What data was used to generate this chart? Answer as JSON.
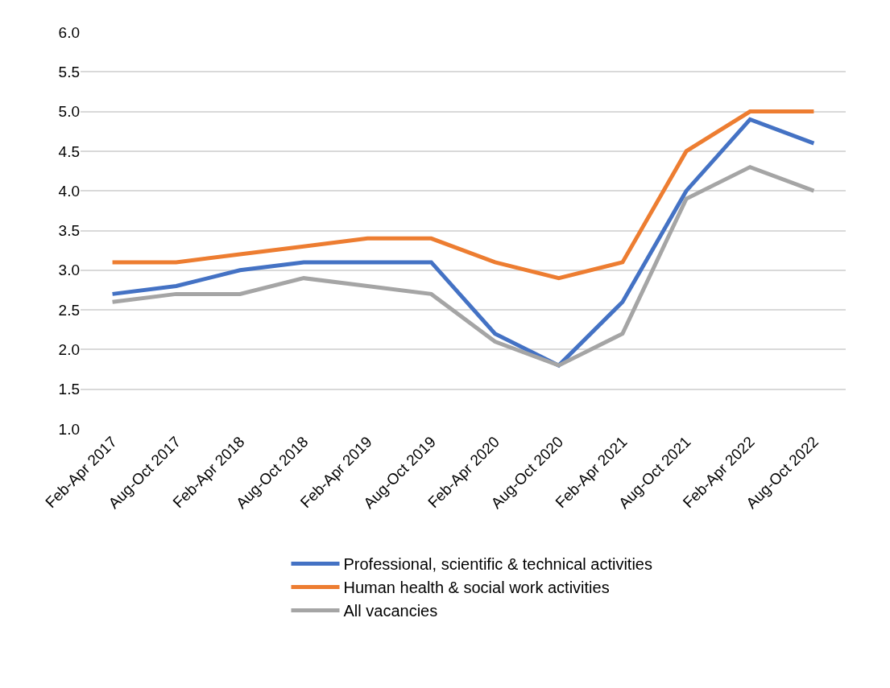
{
  "chart_data": {
    "type": "line",
    "categories": [
      "Feb-Apr 2017",
      "Aug-Oct 2017",
      "Feb-Apr 2018",
      "Aug-Oct 2018",
      "Feb-Apr 2019",
      "Aug-Oct 2019",
      "Feb-Apr 2020",
      "Aug-Oct 2020",
      "Feb-Apr 2021",
      "Aug-Oct 2021",
      "Feb-Apr 2022",
      "Aug-Oct 2022"
    ],
    "series": [
      {
        "name": "Professional, scientific & technical activities",
        "color": "#4472c4",
        "values": [
          2.7,
          2.8,
          3.0,
          3.1,
          3.1,
          3.1,
          2.2,
          1.8,
          2.6,
          4.0,
          4.9,
          4.6
        ]
      },
      {
        "name": "Human health & social work activities",
        "color": "#ed7d31",
        "values": [
          3.1,
          3.1,
          3.2,
          3.3,
          3.4,
          3.4,
          3.1,
          2.9,
          3.1,
          4.5,
          5.0,
          5.0
        ]
      },
      {
        "name": "All vacancies",
        "color": "#a5a5a5",
        "values": [
          2.6,
          2.7,
          2.7,
          2.9,
          2.8,
          2.7,
          2.1,
          1.8,
          2.2,
          3.9,
          4.3,
          4.0
        ]
      }
    ],
    "ylim": [
      1.0,
      6.0
    ],
    "yticks": [
      {
        "value": 1,
        "label": "1.0"
      },
      {
        "value": 1.5,
        "label": "1.5"
      },
      {
        "value": 2,
        "label": "2.0"
      },
      {
        "value": 2.5,
        "label": "2.5"
      },
      {
        "value": 3,
        "label": "3.0"
      },
      {
        "value": 3.5,
        "label": "3.5"
      },
      {
        "value": 4,
        "label": "4.0"
      },
      {
        "value": 4.5,
        "label": "4.5"
      },
      {
        "value": 5,
        "label": "5.0"
      },
      {
        "value": 5.5,
        "label": "5.5"
      },
      {
        "value": 6,
        "label": "6.0"
      }
    ],
    "grid": "y",
    "legend": "bottom",
    "marker": "none",
    "line_style": "solid"
  }
}
